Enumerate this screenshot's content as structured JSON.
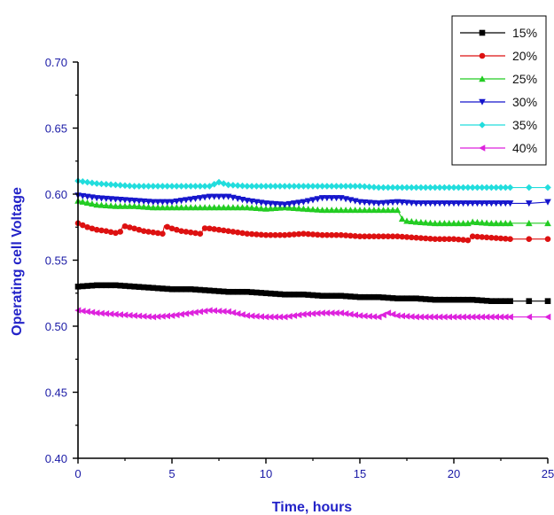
{
  "chart_data": {
    "type": "line",
    "title": "",
    "xlabel": "Time, hours",
    "ylabel": "Operating cell Voltage",
    "xlim": [
      0,
      25
    ],
    "ylim": [
      0.4,
      0.7
    ],
    "xticks": [
      "0",
      "5",
      "10",
      "15",
      "20",
      "25"
    ],
    "yticks": [
      "0.40",
      "0.45",
      "0.50",
      "0.55",
      "0.60",
      "0.65",
      "0.70"
    ],
    "grid": false,
    "legend_position": "top-right",
    "series": [
      {
        "name": "15%",
        "color": "#000000",
        "marker": "square",
        "x": [
          0,
          1,
          2,
          3,
          4,
          5,
          6,
          7,
          8,
          9,
          10,
          11,
          12,
          13,
          14,
          15,
          16,
          17,
          18,
          19,
          20,
          21,
          22,
          23,
          24,
          25
        ],
        "values": [
          0.53,
          0.531,
          0.531,
          0.53,
          0.529,
          0.528,
          0.528,
          0.527,
          0.526,
          0.526,
          0.525,
          0.524,
          0.524,
          0.523,
          0.523,
          0.522,
          0.522,
          0.521,
          0.521,
          0.52,
          0.52,
          0.52,
          0.519,
          0.519,
          0.519,
          0.519
        ]
      },
      {
        "name": "20%",
        "color": "#dd1111",
        "marker": "circle",
        "x": [
          0,
          0.5,
          1,
          1.5,
          2.2,
          2.4,
          3,
          3.5,
          4,
          4.5,
          4.6,
          5,
          5.5,
          6,
          6.5,
          6.8,
          7,
          8,
          9,
          10,
          11,
          12,
          13,
          14,
          15,
          16,
          17,
          18,
          19,
          20,
          20.8,
          21,
          22,
          23,
          25
        ],
        "values": [
          0.578,
          0.575,
          0.573,
          0.572,
          0.57,
          0.576,
          0.574,
          0.572,
          0.571,
          0.57,
          0.576,
          0.574,
          0.572,
          0.571,
          0.57,
          0.575,
          0.574,
          0.572,
          0.57,
          0.569,
          0.569,
          0.57,
          0.569,
          0.569,
          0.568,
          0.568,
          0.568,
          0.567,
          0.566,
          0.566,
          0.565,
          0.568,
          0.567,
          0.566,
          0.566
        ]
      },
      {
        "name": "25%",
        "color": "#22cc22",
        "marker": "triangle-up",
        "x": [
          0,
          1,
          2,
          3,
          4,
          5,
          6,
          7,
          8,
          9,
          10,
          11,
          12,
          13,
          14,
          15,
          16,
          17,
          17.3,
          18,
          19,
          20,
          20.8,
          21,
          22,
          23,
          24,
          25
        ],
        "values": [
          0.595,
          0.592,
          0.591,
          0.591,
          0.59,
          0.59,
          0.59,
          0.59,
          0.59,
          0.59,
          0.589,
          0.59,
          0.589,
          0.588,
          0.588,
          0.588,
          0.588,
          0.588,
          0.58,
          0.579,
          0.578,
          0.578,
          0.578,
          0.579,
          0.578,
          0.578,
          0.578,
          0.578
        ]
      },
      {
        "name": "30%",
        "color": "#1515cc",
        "marker": "triangle-down",
        "x": [
          0,
          1,
          2,
          3,
          4,
          5,
          6,
          7,
          8,
          9,
          10,
          11,
          12,
          13,
          14,
          15,
          16,
          17,
          18,
          19,
          20,
          21,
          22,
          23,
          24,
          25
        ],
        "values": [
          0.599,
          0.597,
          0.596,
          0.595,
          0.594,
          0.594,
          0.596,
          0.598,
          0.598,
          0.595,
          0.593,
          0.592,
          0.594,
          0.597,
          0.597,
          0.594,
          0.593,
          0.594,
          0.593,
          0.593,
          0.593,
          0.593,
          0.593,
          0.593,
          0.593,
          0.594
        ]
      },
      {
        "name": "35%",
        "color": "#22dddd",
        "marker": "diamond",
        "x": [
          0,
          1,
          2,
          3,
          4,
          5,
          6,
          7,
          7.5,
          8,
          9,
          10,
          11,
          12,
          13,
          14,
          15,
          16,
          17,
          18,
          19,
          20,
          21,
          22,
          23,
          24,
          25
        ],
        "values": [
          0.61,
          0.608,
          0.607,
          0.606,
          0.606,
          0.606,
          0.606,
          0.606,
          0.609,
          0.607,
          0.606,
          0.606,
          0.606,
          0.606,
          0.606,
          0.606,
          0.606,
          0.605,
          0.605,
          0.605,
          0.605,
          0.605,
          0.605,
          0.605,
          0.605,
          0.605,
          0.605
        ]
      },
      {
        "name": "40%",
        "color": "#dd22dd",
        "marker": "triangle-left",
        "x": [
          0,
          1,
          2,
          3,
          4,
          5,
          6,
          7,
          8,
          9,
          10,
          11,
          12,
          13,
          14,
          15,
          16,
          16.5,
          17,
          18,
          19,
          20,
          21,
          22,
          23,
          24,
          25
        ],
        "values": [
          0.512,
          0.51,
          0.509,
          0.508,
          0.507,
          0.508,
          0.51,
          0.512,
          0.511,
          0.508,
          0.507,
          0.507,
          0.509,
          0.51,
          0.51,
          0.508,
          0.507,
          0.51,
          0.508,
          0.507,
          0.507,
          0.507,
          0.507,
          0.507,
          0.507,
          0.507,
          0.507
        ]
      }
    ]
  }
}
